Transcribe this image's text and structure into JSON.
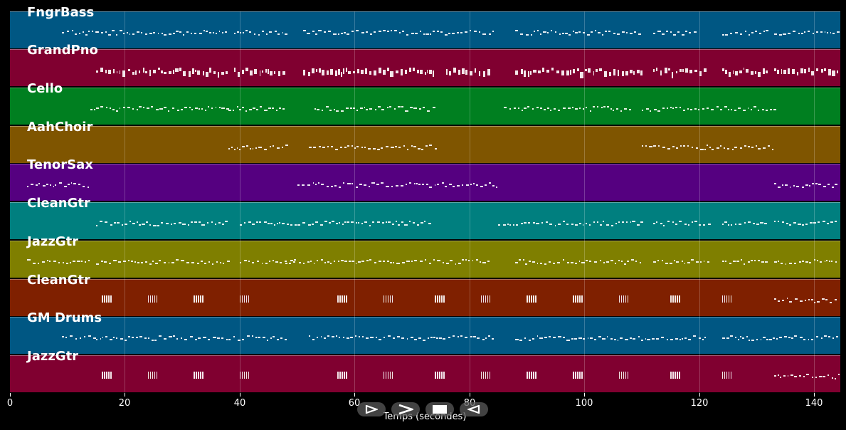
{
  "chart_data": {
    "type": "piano-roll",
    "title": "",
    "xlabel": "Temps (secondes)",
    "ylabel": "",
    "xlim": [
      0,
      144.6
    ],
    "x_ticks": [
      0,
      20,
      40,
      60,
      80,
      100,
      120,
      140
    ],
    "grid": true,
    "tracks": [
      {
        "name": "FngrBass",
        "color": "#005783",
        "segments": [
          [
            9,
            15
          ],
          [
            15,
            38
          ],
          [
            39,
            48
          ],
          [
            51,
            84
          ],
          [
            88,
            110
          ],
          [
            112,
            120
          ],
          [
            124,
            132
          ],
          [
            133,
            144.6
          ]
        ]
      },
      {
        "name": "GrandPno",
        "color": "#800030",
        "segments": [
          [
            15,
            38
          ],
          [
            39,
            48
          ],
          [
            51,
            74
          ],
          [
            76,
            84
          ],
          [
            88,
            110
          ],
          [
            112,
            121
          ],
          [
            124,
            132
          ],
          [
            133,
            144.6
          ]
        ]
      },
      {
        "name": "Cello",
        "color": "#007F20",
        "segments": [
          [
            14,
            38
          ],
          [
            38,
            48
          ],
          [
            53,
            62
          ],
          [
            62,
            74
          ],
          [
            86,
            108
          ],
          [
            110,
            133
          ]
        ]
      },
      {
        "name": "AahChoir",
        "color": "#7F5500",
        "segments": [
          [
            38,
            48
          ],
          [
            52,
            74
          ],
          [
            110,
            133
          ]
        ]
      },
      {
        "name": "TenorSax",
        "color": "#550080",
        "segments": [
          [
            3,
            14
          ],
          [
            50,
            85
          ],
          [
            133,
            144.6
          ]
        ]
      },
      {
        "name": "CleanGtr",
        "color": "#007F7F",
        "segments": [
          [
            15,
            38
          ],
          [
            40,
            50
          ],
          [
            50,
            73
          ],
          [
            85,
            110
          ],
          [
            112,
            122
          ],
          [
            124,
            132
          ],
          [
            133,
            144.6
          ]
        ]
      },
      {
        "name": "JazzGtr",
        "color": "#7F7F00",
        "segments": [
          [
            3,
            14
          ],
          [
            15,
            38
          ],
          [
            40,
            50
          ],
          [
            48,
            84
          ],
          [
            88,
            110
          ],
          [
            112,
            122
          ],
          [
            124,
            132
          ],
          [
            133,
            144.6
          ]
        ]
      },
      {
        "name": "CleanGtr",
        "color": "#7F2000",
        "segments": [
          [
            16,
            18
          ],
          [
            24,
            26
          ],
          [
            32,
            34
          ],
          [
            40,
            42
          ],
          [
            57,
            59
          ],
          [
            65,
            67
          ],
          [
            74,
            75
          ],
          [
            82,
            84
          ],
          [
            90,
            92
          ],
          [
            98,
            100
          ],
          [
            106,
            108
          ],
          [
            115,
            117
          ],
          [
            124,
            125
          ],
          [
            133,
            144.6
          ]
        ]
      },
      {
        "name": "GM Drums",
        "color": "#005783",
        "segments": [
          [
            9,
            15
          ],
          [
            15,
            48
          ],
          [
            52,
            84
          ],
          [
            88,
            121
          ],
          [
            124,
            144.6
          ]
        ]
      },
      {
        "name": "JazzGtr",
        "color": "#800030",
        "segments": [
          [
            16,
            18
          ],
          [
            24,
            26
          ],
          [
            32,
            34
          ],
          [
            40,
            42
          ],
          [
            57,
            59
          ],
          [
            65,
            67
          ],
          [
            74,
            75
          ],
          [
            82,
            84
          ],
          [
            90,
            92
          ],
          [
            98,
            100
          ],
          [
            106,
            108
          ],
          [
            115,
            117
          ],
          [
            124,
            125
          ],
          [
            133,
            144.6
          ]
        ]
      }
    ]
  },
  "tracks": [
    "FngrBass",
    "GrandPno",
    "Cello",
    "AahChoir",
    "TenorSax",
    "CleanGtr",
    "JazzGtr",
    "CleanGtr",
    "GM Drums",
    "JazzGtr"
  ],
  "axis": {
    "xlabel": "Temps (secondes)",
    "ticks": [
      "0",
      "20",
      "40",
      "60",
      "80",
      "100",
      "120",
      "140"
    ]
  },
  "controls": {
    "play_label": "play",
    "fast_forward_label": "fast-forward",
    "stop_label": "stop",
    "rewind_label": "rewind"
  }
}
